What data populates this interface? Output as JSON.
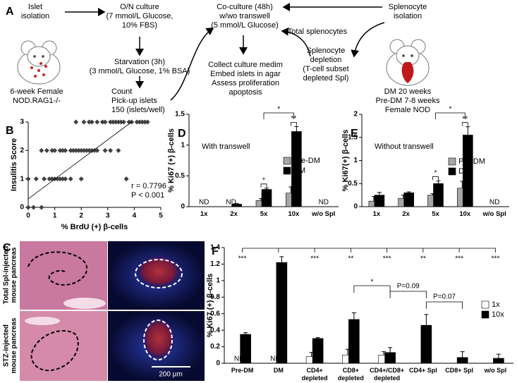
{
  "panel_labels": [
    "A",
    "B",
    "C",
    "D",
    "E",
    "F"
  ],
  "diagram": {
    "islet_isolation": [
      "Islet",
      "isolation"
    ],
    "overnight_culture": [
      "O/N culture",
      "(7 mmol/L Glucose,",
      "10% FBS)"
    ],
    "starvation": [
      "Starvation (3h)",
      "(3 mmol/L Glucose, 1% BSA)"
    ],
    "count": [
      "Count",
      "Pick-up islets",
      "150 (islets/well)"
    ],
    "co_culture": [
      "Co-culture (48h)",
      "w/wo transwell",
      "(5 mmol/L Glucose)"
    ],
    "total_splenocytes": [
      "Total splenocytes"
    ],
    "splenocyte_isolation": [
      "Splenocyte",
      "isolation"
    ],
    "assess": [
      "Collect culture medim",
      "Embed islets in agar",
      "Assess proliferation",
      "apoptosis"
    ],
    "depletion": [
      "Splenocyte",
      "depletion",
      "(T-cell subset",
      "depleted Spl)"
    ],
    "rag_mouse": [
      "6-week Female",
      "NOD.RAG1-/-"
    ],
    "nod_mouse": [
      "DM 20 weeks",
      "Pre-DM 7-8 weeks",
      "Female NOD"
    ]
  },
  "histology": {
    "rows": [
      [
        "Total Spl-injected",
        "mouse pancreas"
      ],
      [
        "STZ-injected",
        "mouse pancreas"
      ]
    ],
    "scale_bar": "200 μm"
  },
  "chart_data": [
    {
      "type": "scatter",
      "xlabel": "% BrdU (+) β-cells",
      "ylabel": "Insulitis Score",
      "color": "#404040",
      "x": [
        1.8,
        2.1,
        2.3,
        2.4,
        2.6,
        2.8,
        2.9,
        3.1,
        3.2,
        3.3,
        3.4,
        3.5,
        3.6,
        3.8,
        3.9,
        4.1,
        4.2,
        4.3,
        4.4,
        4.5,
        0.5,
        0.7,
        0.9,
        1.0,
        1.2,
        1.3,
        1.4,
        1.6,
        1.7,
        1.8,
        1.9,
        2.0,
        2.1,
        2.2,
        2.3,
        2.4,
        2.5,
        2.6,
        2.9,
        3.1,
        3.4,
        0,
        0.3,
        0.6,
        0.8,
        0.9,
        1.0,
        1.1,
        1.2,
        1.3,
        1.4,
        1.6,
        2.0,
        3.7,
        0,
        0.2,
        0.5
      ],
      "values": [
        3,
        3,
        3,
        3,
        3,
        3,
        3,
        3,
        3,
        3,
        3,
        3,
        3,
        3,
        3,
        3,
        3,
        3,
        3,
        3,
        2,
        2,
        2,
        2,
        2,
        2,
        2,
        2,
        2,
        2,
        2,
        2,
        2,
        2,
        2,
        2,
        2,
        2,
        2,
        2,
        2,
        1,
        1,
        1,
        1,
        1,
        1,
        1,
        1,
        1,
        1,
        1,
        1,
        1,
        0,
        0,
        0
      ],
      "fit": {
        "x": [
          0,
          3.9
        ],
        "values": [
          0.3,
          3
        ]
      },
      "xlim": [
        0,
        5
      ],
      "ylim": [
        0,
        3
      ],
      "xticks": [
        0,
        1,
        2,
        3,
        4,
        5
      ],
      "yticks": [
        0,
        1,
        2,
        3
      ],
      "annotations": [
        "r = 0.7796",
        "P < 0.001"
      ]
    },
    {
      "type": "bar",
      "annotations": [
        "With transwell"
      ],
      "ylabel": "% Ki67 (+) β-cells",
      "categories": [
        "1x",
        "2x",
        "5x",
        "10x",
        "w/o Spl"
      ],
      "series": [
        {
          "name": "Pre-DM",
          "color": "#a6a6a6",
          "values": [
            null,
            null,
            0.1,
            0.22,
            null
          ],
          "errors": [
            null,
            null,
            0.03,
            0.1,
            null
          ]
        },
        {
          "name": "DM",
          "color": "#000000",
          "values": [
            null,
            0.04,
            0.28,
            1.22,
            null
          ],
          "errors": [
            null,
            0.01,
            0.02,
            0.08,
            null
          ]
        }
      ],
      "nd_labels": [
        "ND",
        "ND",
        null,
        null,
        "ND"
      ],
      "significance": [
        "*",
        "**",
        "*"
      ],
      "ylim": [
        0,
        1.5
      ],
      "yticks": [
        0,
        0.5,
        1,
        1.5
      ]
    },
    {
      "type": "bar",
      "annotations": [
        "Without transwell"
      ],
      "ylabel": "% Ki67(+) β-cells",
      "categories": [
        "1x",
        "2x",
        "5x",
        "10x",
        "w/o Spl"
      ],
      "series": [
        {
          "name": "Pre-DM",
          "color": "#a6a6a6",
          "values": [
            0.12,
            0.18,
            0.25,
            0.4,
            null
          ],
          "errors": [
            0.1,
            0.07,
            0.03,
            0.15,
            null
          ]
        },
        {
          "name": "DM",
          "color": "#000000",
          "values": [
            0.25,
            0.3,
            0.5,
            1.55,
            null
          ],
          "errors": [
            0.06,
            0.02,
            0.06,
            0.18,
            null
          ]
        }
      ],
      "nd_labels": [
        null,
        null,
        null,
        null,
        "ND"
      ],
      "significance": [
        "*",
        "**",
        "*"
      ],
      "ylim": [
        0,
        2
      ],
      "yticks": [
        0,
        0.5,
        1,
        1.5,
        2
      ]
    },
    {
      "type": "bar",
      "ylabel": "% Ki67 (+) β-cells",
      "categories": [
        "Pre-DM",
        "DM",
        "CD4+\ndepleted",
        "CD8+\ndepleted",
        "CD4+/CD8+\ndepleted",
        "CD4+ Spl",
        "CD8+ Spl",
        "w/o Spl"
      ],
      "series": [
        {
          "name": "1x",
          "color": "#ffffff",
          "values": [
            null,
            null,
            0.08,
            0.1,
            0.1,
            null,
            null,
            null
          ],
          "errors": [
            null,
            null,
            0.05,
            0.07,
            0.04,
            null,
            null,
            null
          ]
        },
        {
          "name": "10x",
          "color": "#000000",
          "values": [
            0.35,
            1.22,
            0.3,
            0.53,
            0.13,
            0.46,
            0.07,
            0.06
          ],
          "errors": [
            0.02,
            0.07,
            0.01,
            0.08,
            0.06,
            0.13,
            0.07,
            0.05
          ]
        }
      ],
      "nd_labels": [
        "ND",
        "ND",
        null,
        null,
        null,
        null,
        null,
        null
      ],
      "significance": [
        "***",
        "***",
        "**",
        "***",
        "**",
        "***",
        "***",
        "*",
        "P=0.09",
        "P=0.07"
      ],
      "ylim": [
        0,
        1.4
      ],
      "yticks": [
        0,
        0.2,
        0.4,
        0.6,
        0.8,
        1,
        1.2,
        1.4
      ]
    }
  ]
}
